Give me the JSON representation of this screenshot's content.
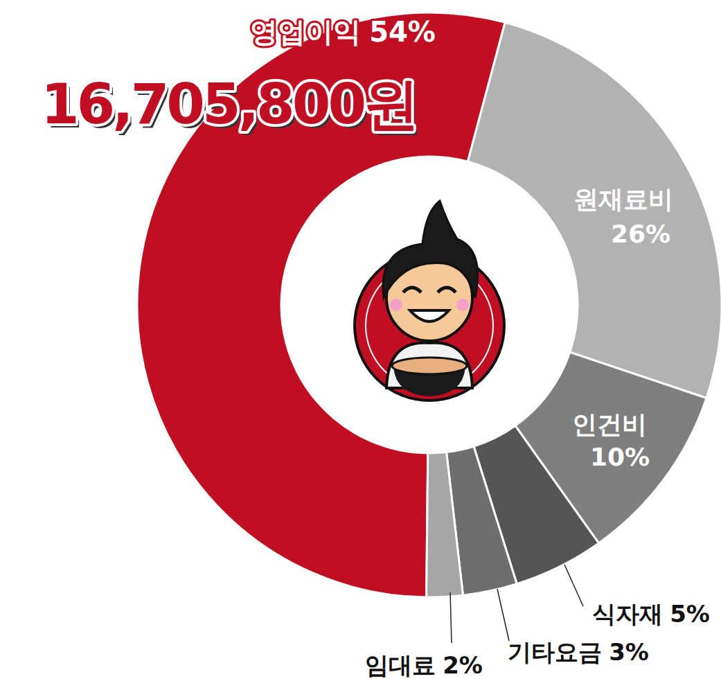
{
  "chart_data": {
    "type": "pie",
    "categories": [
      "영업이익",
      "원재료비",
      "인건비",
      "식자재",
      "기타요금",
      "임대료"
    ],
    "values": [
      54,
      26,
      10,
      5,
      3,
      2
    ],
    "value_labels": [
      "54%",
      "26%",
      "10%",
      "5%",
      "3%",
      "2%"
    ],
    "colors": [
      "#c00f23",
      "#b2b2b2",
      "#7f7f7f",
      "#555555",
      "#6e6e6e",
      "#a6a6a6"
    ],
    "data_labels": true,
    "annotation": "16,705,800원"
  }
}
